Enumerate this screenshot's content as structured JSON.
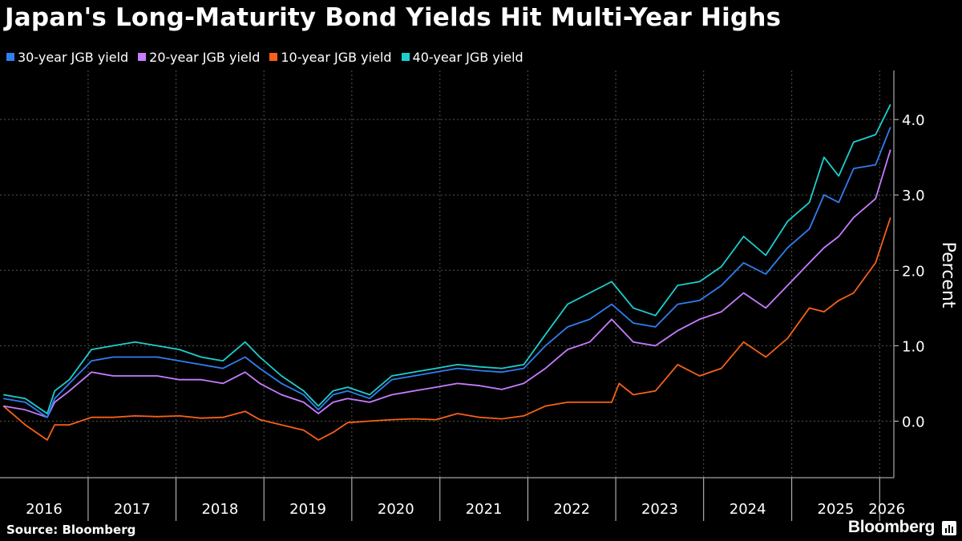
{
  "header": {
    "title": "Japan's Long-Maturity Bond Yields Hit Multi-Year Highs"
  },
  "footer": {
    "source": "Source: Bloomberg",
    "brand": "Bloomberg"
  },
  "colors": {
    "background": "#000000",
    "grid": "#555555",
    "axis": "#cccccc"
  },
  "icons": {
    "brand_mark": "bloomberg-chart-icon"
  },
  "chart_data": {
    "type": "line",
    "title": "Japan's Long-Maturity Bond Yields Hit Multi-Year Highs",
    "ylabel": "Percent",
    "ylim": [
      -0.75,
      4.65
    ],
    "yticks": [
      0.0,
      1.0,
      2.0,
      3.0,
      4.0
    ],
    "ytick_labels": [
      "0.0",
      "1.0",
      "2.0",
      "3.0",
      "4.0"
    ],
    "xlim": [
      "2016-01-01",
      "2026-03-01"
    ],
    "xtick_labels": [
      "2016",
      "2017",
      "2018",
      "2019",
      "2020",
      "2021",
      "2022",
      "2023",
      "2024",
      "2025",
      "2026"
    ],
    "grid": true,
    "legend_position": "top-left",
    "series": [
      {
        "name": "30-year JGB yield",
        "color": "#2f7ff0",
        "x": [
          "2016-01",
          "2016-04",
          "2016-07",
          "2016-08",
          "2016-10",
          "2017-01",
          "2017-04",
          "2017-07",
          "2017-10",
          "2018-01",
          "2018-04",
          "2018-07",
          "2018-10",
          "2018-12",
          "2019-03",
          "2019-06",
          "2019-08",
          "2019-10",
          "2019-12",
          "2020-03",
          "2020-06",
          "2020-09",
          "2020-12",
          "2021-03",
          "2021-06",
          "2021-09",
          "2021-12",
          "2022-03",
          "2022-06",
          "2022-09",
          "2022-12",
          "2023-03",
          "2023-06",
          "2023-09",
          "2023-12",
          "2024-03",
          "2024-06",
          "2024-09",
          "2024-12",
          "2025-03",
          "2025-05",
          "2025-07",
          "2025-09",
          "2025-12",
          "2026-02"
        ],
        "y": [
          0.3,
          0.25,
          0.05,
          0.3,
          0.5,
          0.8,
          0.85,
          0.85,
          0.85,
          0.8,
          0.75,
          0.7,
          0.85,
          0.7,
          0.5,
          0.35,
          0.15,
          0.35,
          0.4,
          0.3,
          0.55,
          0.6,
          0.65,
          0.7,
          0.67,
          0.65,
          0.7,
          1.0,
          1.25,
          1.35,
          1.55,
          1.3,
          1.25,
          1.55,
          1.6,
          1.8,
          2.1,
          1.95,
          2.3,
          2.55,
          3.0,
          2.9,
          3.35,
          3.4,
          3.9
        ]
      },
      {
        "name": "20-year JGB yield",
        "color": "#c77dff",
        "x": [
          "2016-01",
          "2016-04",
          "2016-07",
          "2016-08",
          "2016-10",
          "2017-01",
          "2017-04",
          "2017-07",
          "2017-10",
          "2018-01",
          "2018-04",
          "2018-07",
          "2018-10",
          "2018-12",
          "2019-03",
          "2019-06",
          "2019-08",
          "2019-10",
          "2019-12",
          "2020-03",
          "2020-06",
          "2020-09",
          "2020-12",
          "2021-03",
          "2021-06",
          "2021-09",
          "2021-12",
          "2022-03",
          "2022-06",
          "2022-09",
          "2022-12",
          "2023-03",
          "2023-06",
          "2023-09",
          "2023-12",
          "2024-03",
          "2024-06",
          "2024-09",
          "2024-12",
          "2025-03",
          "2025-05",
          "2025-07",
          "2025-09",
          "2025-12",
          "2026-02"
        ],
        "y": [
          0.2,
          0.15,
          0.05,
          0.25,
          0.4,
          0.65,
          0.6,
          0.6,
          0.6,
          0.55,
          0.55,
          0.5,
          0.65,
          0.5,
          0.35,
          0.25,
          0.1,
          0.25,
          0.3,
          0.25,
          0.35,
          0.4,
          0.45,
          0.5,
          0.47,
          0.42,
          0.5,
          0.7,
          0.95,
          1.05,
          1.35,
          1.05,
          1.0,
          1.2,
          1.35,
          1.45,
          1.7,
          1.5,
          1.8,
          2.1,
          2.3,
          2.45,
          2.7,
          2.95,
          3.6
        ]
      },
      {
        "name": "10-year JGB yield",
        "color": "#f86117",
        "x": [
          "2016-01",
          "2016-04",
          "2016-07",
          "2016-08",
          "2016-10",
          "2017-01",
          "2017-04",
          "2017-07",
          "2017-10",
          "2018-01",
          "2018-04",
          "2018-07",
          "2018-10",
          "2018-12",
          "2019-03",
          "2019-06",
          "2019-08",
          "2019-10",
          "2019-12",
          "2020-03",
          "2020-06",
          "2020-09",
          "2020-12",
          "2021-03",
          "2021-06",
          "2021-09",
          "2021-12",
          "2022-03",
          "2022-06",
          "2022-09",
          "2022-12",
          "2023-01",
          "2023-03",
          "2023-06",
          "2023-09",
          "2023-12",
          "2024-03",
          "2024-06",
          "2024-09",
          "2024-12",
          "2025-03",
          "2025-05",
          "2025-07",
          "2025-09",
          "2025-12",
          "2026-02"
        ],
        "y": [
          0.2,
          -0.05,
          -0.25,
          -0.05,
          -0.05,
          0.05,
          0.05,
          0.07,
          0.06,
          0.07,
          0.04,
          0.05,
          0.13,
          0.02,
          -0.05,
          -0.12,
          -0.25,
          -0.15,
          -0.02,
          0.0,
          0.02,
          0.03,
          0.02,
          0.1,
          0.05,
          0.03,
          0.07,
          0.2,
          0.25,
          0.25,
          0.25,
          0.5,
          0.35,
          0.4,
          0.75,
          0.6,
          0.7,
          1.05,
          0.85,
          1.1,
          1.5,
          1.45,
          1.6,
          1.7,
          2.1,
          2.7
        ]
      },
      {
        "name": "40-year JGB yield",
        "color": "#1ccfcf",
        "x": [
          "2016-01",
          "2016-04",
          "2016-07",
          "2016-08",
          "2016-10",
          "2017-01",
          "2017-04",
          "2017-07",
          "2017-10",
          "2018-01",
          "2018-04",
          "2018-07",
          "2018-10",
          "2018-12",
          "2019-03",
          "2019-06",
          "2019-08",
          "2019-10",
          "2019-12",
          "2020-03",
          "2020-06",
          "2020-09",
          "2020-12",
          "2021-03",
          "2021-06",
          "2021-09",
          "2021-12",
          "2022-03",
          "2022-06",
          "2022-09",
          "2022-12",
          "2023-03",
          "2023-06",
          "2023-09",
          "2023-12",
          "2024-03",
          "2024-06",
          "2024-09",
          "2024-12",
          "2025-03",
          "2025-05",
          "2025-07",
          "2025-09",
          "2025-12",
          "2026-02"
        ],
        "y": [
          0.35,
          0.3,
          0.1,
          0.4,
          0.55,
          0.95,
          1.0,
          1.05,
          1.0,
          0.95,
          0.85,
          0.8,
          1.05,
          0.85,
          0.6,
          0.4,
          0.2,
          0.4,
          0.45,
          0.35,
          0.6,
          0.65,
          0.7,
          0.75,
          0.72,
          0.7,
          0.75,
          1.15,
          1.55,
          1.7,
          1.85,
          1.5,
          1.4,
          1.8,
          1.85,
          2.05,
          2.45,
          2.2,
          2.65,
          2.9,
          3.5,
          3.25,
          3.7,
          3.8,
          4.2
        ]
      }
    ]
  }
}
